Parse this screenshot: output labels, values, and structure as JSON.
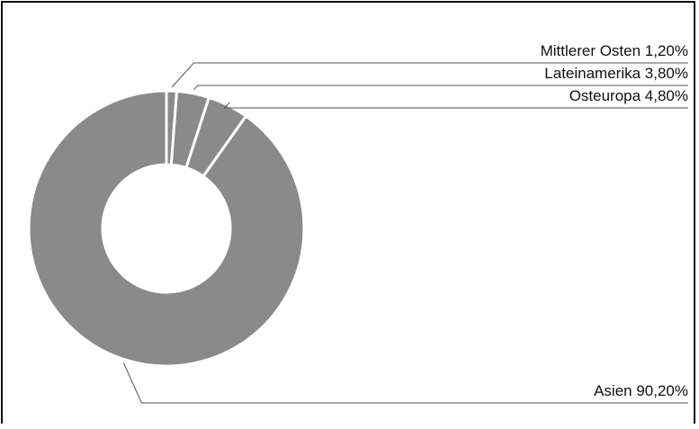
{
  "chart_data": {
    "type": "pie",
    "variant": "donut",
    "title": "",
    "colors": {
      "slice_fill": "#8a8a8a",
      "slice_border": "#ffffff",
      "leader_line": "#555555",
      "text": "#111111",
      "frame": "#111111"
    },
    "slices": [
      {
        "label": "Mittlerer Osten 1,20%",
        "category": "Mittlerer Osten",
        "value": 1.2
      },
      {
        "label": "Lateinamerika 3,80%",
        "category": "Lateinamerika",
        "value": 3.8
      },
      {
        "label": "Osteuropa 4,80%",
        "category": "Osteuropa",
        "value": 4.8
      },
      {
        "label": "Asien 90,20%",
        "category": "Asien",
        "value": 90.2
      }
    ]
  }
}
